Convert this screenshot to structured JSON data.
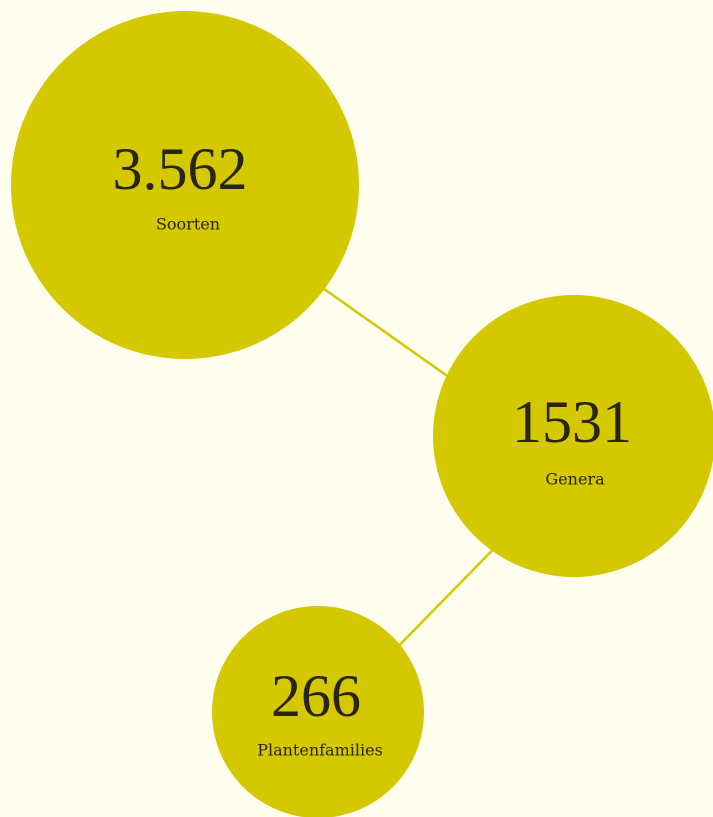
{
  "items": [
    {
      "value": "3.562",
      "label": "Soorten"
    },
    {
      "value": "1531",
      "label": "Genera"
    },
    {
      "value": "266",
      "label": "Plantenfamilies"
    }
  ]
}
